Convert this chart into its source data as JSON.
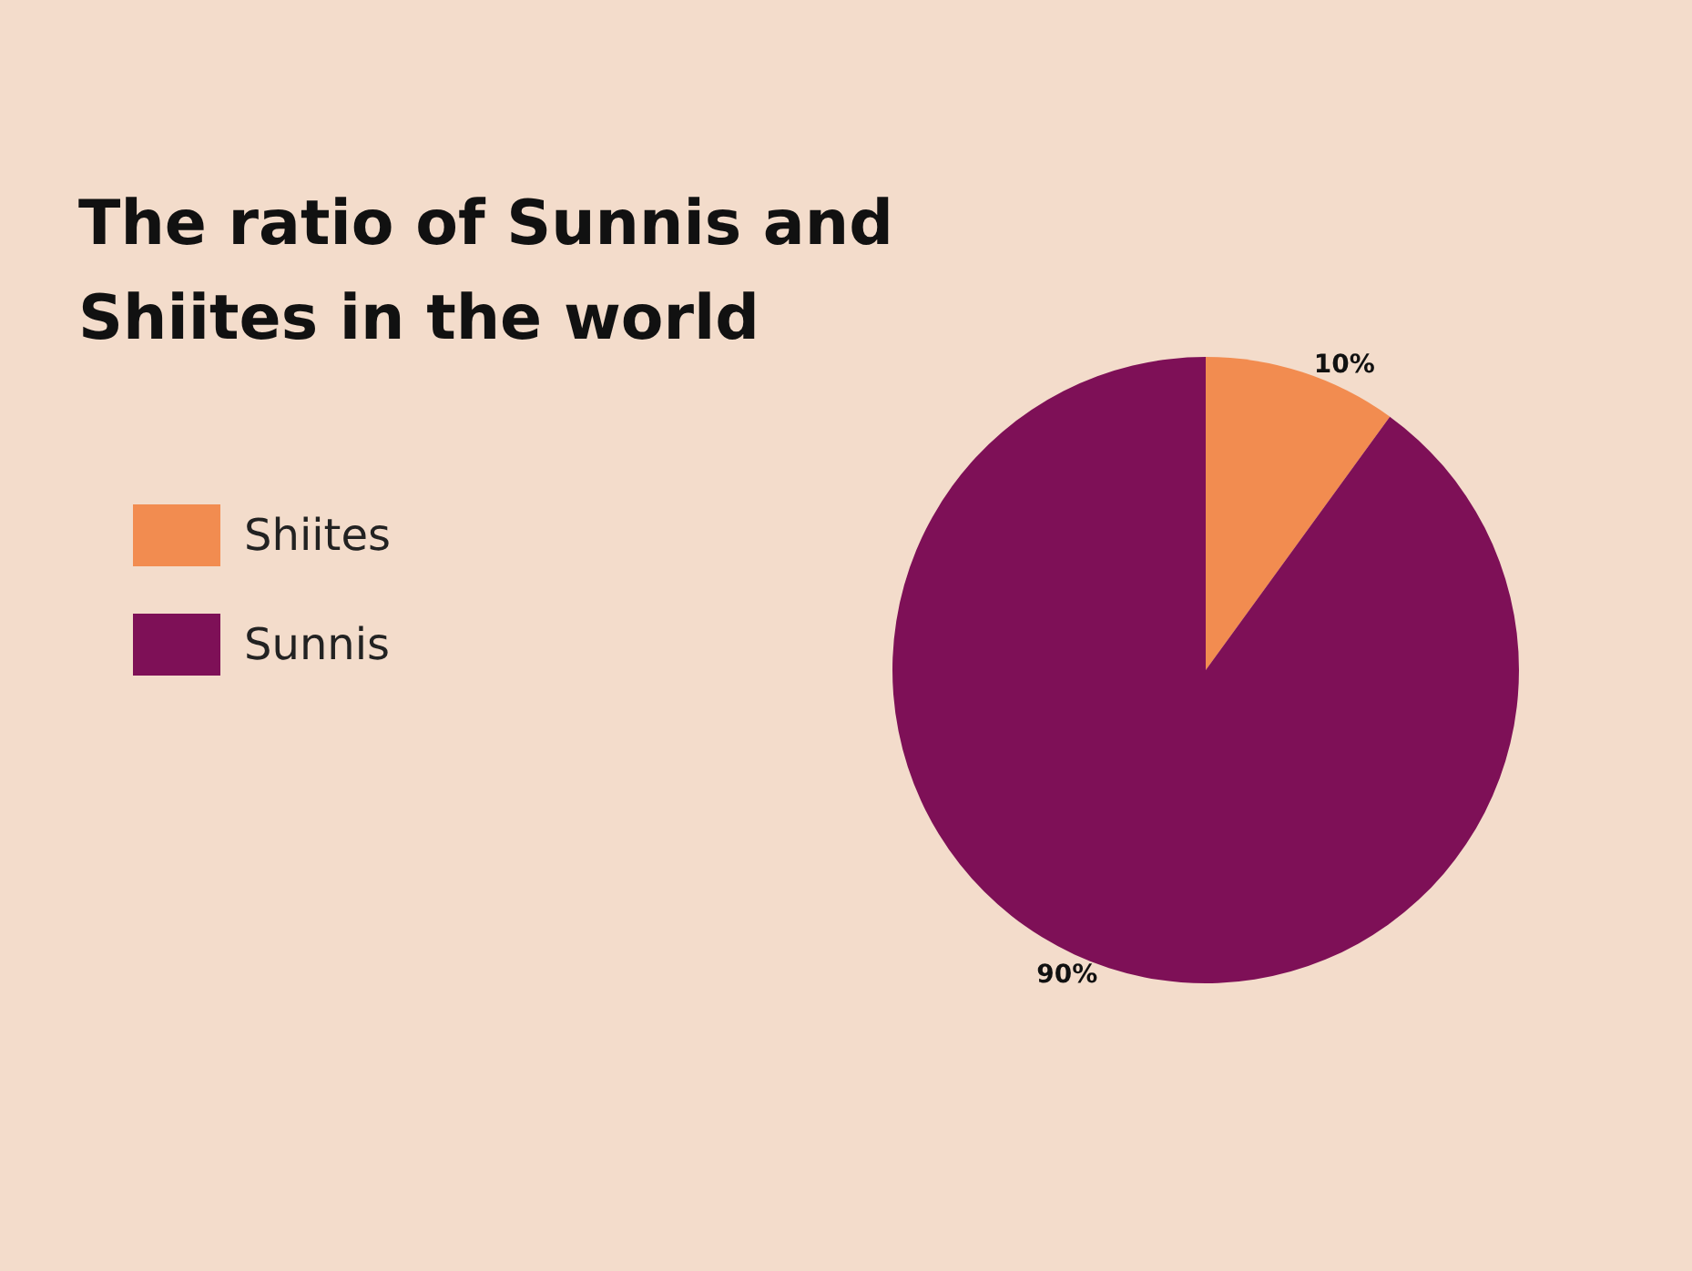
{
  "chart_data": {
    "type": "pie",
    "title": "The ratio of Sunnis and Shiites in the world",
    "categories": [
      "Shiites",
      "Sunnis"
    ],
    "values": [
      10,
      90
    ],
    "colors": [
      "#f28c50",
      "#7e1057"
    ],
    "value_labels": [
      "10%",
      "90%"
    ],
    "legend": "left"
  }
}
